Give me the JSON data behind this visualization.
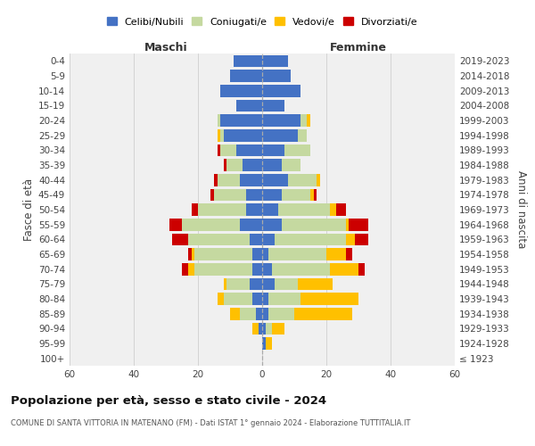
{
  "age_groups": [
    "100+",
    "95-99",
    "90-94",
    "85-89",
    "80-84",
    "75-79",
    "70-74",
    "65-69",
    "60-64",
    "55-59",
    "50-54",
    "45-49",
    "40-44",
    "35-39",
    "30-34",
    "25-29",
    "20-24",
    "15-19",
    "10-14",
    "5-9",
    "0-4"
  ],
  "birth_years": [
    "≤ 1923",
    "1924-1928",
    "1929-1933",
    "1934-1938",
    "1939-1943",
    "1944-1948",
    "1949-1953",
    "1954-1958",
    "1959-1963",
    "1964-1968",
    "1969-1973",
    "1974-1978",
    "1979-1983",
    "1984-1988",
    "1989-1993",
    "1994-1998",
    "1999-2003",
    "2004-2008",
    "2009-2013",
    "2014-2018",
    "2019-2023"
  ],
  "maschi_celibe": [
    0,
    0,
    1,
    2,
    3,
    4,
    3,
    3,
    4,
    7,
    5,
    5,
    7,
    6,
    8,
    12,
    13,
    8,
    13,
    10,
    9
  ],
  "maschi_coniugato": [
    0,
    0,
    0,
    5,
    9,
    7,
    18,
    18,
    19,
    18,
    15,
    10,
    7,
    5,
    5,
    1,
    1,
    0,
    0,
    0,
    0
  ],
  "maschi_vedovo": [
    0,
    0,
    2,
    3,
    2,
    1,
    2,
    1,
    0,
    0,
    0,
    0,
    0,
    0,
    0,
    1,
    0,
    0,
    0,
    0,
    0
  ],
  "maschi_divorziato": [
    0,
    0,
    0,
    0,
    0,
    0,
    2,
    1,
    5,
    4,
    2,
    1,
    1,
    1,
    1,
    0,
    0,
    0,
    0,
    0,
    0
  ],
  "femmine_celibe": [
    0,
    1,
    1,
    2,
    2,
    4,
    3,
    2,
    4,
    6,
    5,
    6,
    8,
    6,
    7,
    11,
    12,
    7,
    12,
    9,
    8
  ],
  "femmine_coniugata": [
    0,
    0,
    2,
    8,
    10,
    7,
    18,
    18,
    22,
    20,
    16,
    9,
    9,
    6,
    8,
    3,
    2,
    0,
    0,
    0,
    0
  ],
  "femmine_vedova": [
    0,
    2,
    4,
    18,
    18,
    11,
    9,
    6,
    3,
    1,
    2,
    1,
    1,
    0,
    0,
    0,
    1,
    0,
    0,
    0,
    0
  ],
  "femmine_divorziata": [
    0,
    0,
    0,
    0,
    0,
    0,
    2,
    2,
    4,
    6,
    3,
    1,
    0,
    0,
    0,
    0,
    0,
    0,
    0,
    0,
    0
  ],
  "color_celibe": "#4472c4",
  "color_coniugato": "#c5d9a0",
  "color_vedovo": "#ffc000",
  "color_divorziato": "#cc0000",
  "bg_color": "#f0f0f0",
  "grid_color": "#cccccc",
  "center_line_color": "#aaaaaa",
  "title": "Popolazione per età, sesso e stato civile - 2024",
  "subtitle": "COMUNE DI SANTA VITTORIA IN MATENANO (FM) - Dati ISTAT 1° gennaio 2024 - Elaborazione TUTTITALIA.IT",
  "xlabel_left": "Maschi",
  "xlabel_right": "Femmine",
  "ylabel_left": "Fasce di età",
  "ylabel_right": "Anni di nascita",
  "xlim": 60,
  "legend_labels": [
    "Celibi/Nubili",
    "Coniugati/e",
    "Vedovi/e",
    "Divorziati/e"
  ]
}
